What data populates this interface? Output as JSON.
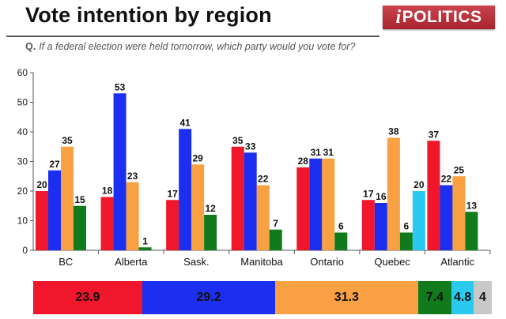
{
  "header": {
    "title": "Vote intention by region",
    "logo": "POLITICS",
    "logo_i": "i",
    "question_prefix": "Q.",
    "question": "If a federal election were held tomorrow, which party would you vote for?"
  },
  "colors": {
    "red": "#f0162b",
    "blue": "#1c2ef0",
    "orange": "#f9a042",
    "green": "#117a1d",
    "cyan": "#29c9f0",
    "gray": "#c8c8c8"
  },
  "chart_data": {
    "type": "bar",
    "title": "Vote intention by region",
    "ylim": [
      0,
      60
    ],
    "yticks": [
      "0",
      "10",
      "20",
      "30",
      "40",
      "50",
      "60"
    ],
    "categories": [
      "BC",
      "Alberta",
      "Sask.",
      "Manitoba",
      "Ontario",
      "Quebec",
      "Atlantic"
    ],
    "groups": [
      [
        {
          "color": "red",
          "value": 20
        },
        {
          "color": "blue",
          "value": 27
        },
        {
          "color": "orange",
          "value": 35
        },
        {
          "color": "green",
          "value": 15
        }
      ],
      [
        {
          "color": "red",
          "value": 18
        },
        {
          "color": "blue",
          "value": 53
        },
        {
          "color": "orange",
          "value": 23
        },
        {
          "color": "green",
          "value": 1
        }
      ],
      [
        {
          "color": "red",
          "value": 17
        },
        {
          "color": "blue",
          "value": 41
        },
        {
          "color": "orange",
          "value": 29
        },
        {
          "color": "green",
          "value": 12
        }
      ],
      [
        {
          "color": "red",
          "value": 35
        },
        {
          "color": "blue",
          "value": 33
        },
        {
          "color": "orange",
          "value": 22
        },
        {
          "color": "green",
          "value": 7
        }
      ],
      [
        {
          "color": "red",
          "value": 28
        },
        {
          "color": "blue",
          "value": 31
        },
        {
          "color": "orange",
          "value": 31
        },
        {
          "color": "green",
          "value": 6
        }
      ],
      [
        {
          "color": "red",
          "value": 17
        },
        {
          "color": "blue",
          "value": 16
        },
        {
          "color": "orange",
          "value": 38
        },
        {
          "color": "green",
          "value": 6
        },
        {
          "color": "cyan",
          "value": 20
        }
      ],
      [
        {
          "color": "red",
          "value": 37
        },
        {
          "color": "blue",
          "value": 22
        },
        {
          "color": "orange",
          "value": 25
        },
        {
          "color": "green",
          "value": 13
        }
      ]
    ],
    "national_summary": [
      {
        "color": "red",
        "value": 23.9,
        "label": "23.9"
      },
      {
        "color": "blue",
        "value": 29.2,
        "label": "29.2"
      },
      {
        "color": "orange",
        "value": 31.3,
        "label": "31.3"
      },
      {
        "color": "green",
        "value": 7.4,
        "label": "7.4"
      },
      {
        "color": "cyan",
        "value": 4.8,
        "label": "4.8"
      },
      {
        "color": "gray",
        "value": 4,
        "label": "4"
      }
    ]
  }
}
